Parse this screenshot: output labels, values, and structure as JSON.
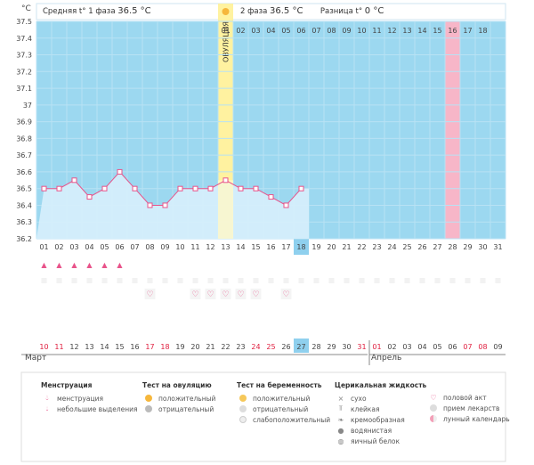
{
  "header": {
    "phase1_label": "Средняя t° 1 фаза",
    "phase1_value": "36.5 °C",
    "phase2_label": "2 фаза",
    "phase2_value": "36.5 °C",
    "diff_label": "Разница t°",
    "diff_value": "0 °C"
  },
  "ovulation_label": "ОВУЛЯЦИЯ",
  "colors": {
    "chart_bg": "#9cd8f0",
    "ovulation": "#fff2a0",
    "highlight_pink": "#f7b6c8",
    "current_day": "#8fd0ee",
    "line": "#e8538a",
    "fill": "#d5eefb"
  },
  "chart_data": {
    "type": "line",
    "title": "",
    "ylabel": "°C",
    "ylim": [
      36.2,
      37.5
    ],
    "yticks": [
      "37.5",
      "37.4",
      "37.3",
      "37.2",
      "37.1",
      "37",
      "36.9",
      "36.8",
      "36.7",
      "36.6",
      "36.5",
      "36.4",
      "36.3",
      "36.2"
    ],
    "cycle_days": [
      "01",
      "02",
      "03",
      "04",
      "05",
      "06",
      "07",
      "08",
      "09",
      "10",
      "11",
      "12",
      "13",
      "14",
      "15",
      "16",
      "17",
      "18",
      "19",
      "20",
      "21",
      "22",
      "23",
      "24",
      "25",
      "26",
      "27",
      "28",
      "29",
      "30",
      "31"
    ],
    "top_days": [
      "01",
      "02",
      "03",
      "04",
      "05",
      "06",
      "07",
      "08",
      "09",
      "10",
      "11",
      "12",
      "13",
      "14",
      "15",
      "16",
      "17",
      "18"
    ],
    "ovulation_day": "13",
    "current_day": "18",
    "pink_column_day": "28",
    "series": [
      {
        "values": [
          36.5,
          36.5,
          36.55,
          36.45,
          36.5,
          36.6,
          36.5,
          36.4,
          36.4,
          36.5,
          36.5,
          36.5,
          36.55,
          36.5,
          36.5,
          36.45,
          36.4,
          36.5
        ]
      }
    ]
  },
  "menstruation_days": [
    "01",
    "02",
    "03",
    "04",
    "05",
    "06"
  ],
  "heart_days": [
    "08",
    "11",
    "12",
    "13",
    "14",
    "15",
    "17"
  ],
  "dates": [
    "10",
    "11",
    "12",
    "13",
    "14",
    "15",
    "16",
    "17",
    "18",
    "19",
    "20",
    "21",
    "22",
    "23",
    "24",
    "25",
    "26",
    "27",
    "28",
    "29",
    "30",
    "31",
    "01",
    "02",
    "03",
    "04",
    "05",
    "06",
    "07",
    "08",
    "09"
  ],
  "date_red": [
    "10",
    "11",
    "17",
    "18",
    "24",
    "25",
    "31",
    "01",
    "07",
    "08"
  ],
  "current_date": "27",
  "months": {
    "first": "Март",
    "second": "Апрель"
  },
  "legend": {
    "menstruation": {
      "title": "Менструация",
      "items": [
        "менструация",
        "небольшие выделения"
      ]
    },
    "ovulation_test": {
      "title": "Тест на овуляцию",
      "items": [
        "положительный",
        "отрицательный"
      ]
    },
    "pregnancy_test": {
      "title": "Тест на беременность",
      "items": [
        "положительный",
        "отрицательный",
        "слабоположительный"
      ]
    },
    "cervical": {
      "title": "Церикальная жидкость",
      "items": [
        "сухо",
        "клейкая",
        "кремообразная",
        "водянистая",
        "яичный белок"
      ]
    },
    "other": {
      "items": [
        "половой акт",
        "прием лекарств",
        "лунный календарь"
      ]
    }
  },
  "icons": {
    "sun": "sun-icon",
    "drop": "drop-icon",
    "heart": "heart-icon"
  }
}
